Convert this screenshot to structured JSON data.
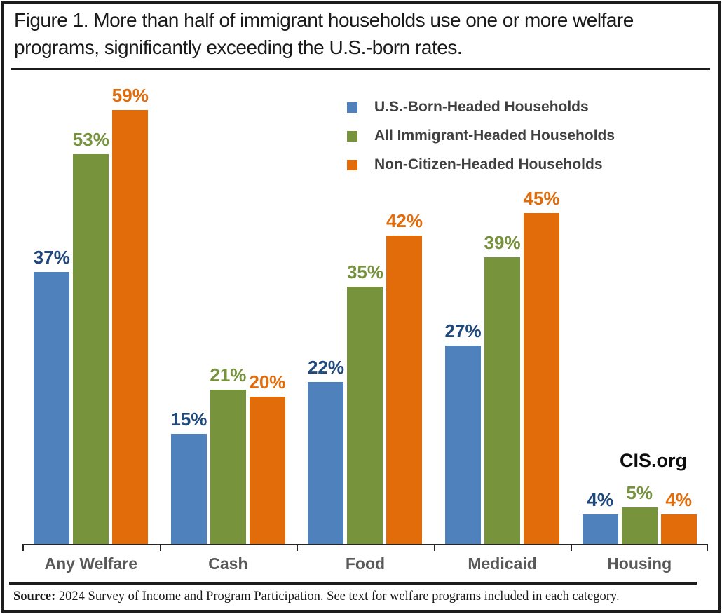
{
  "figure": {
    "title": "Figure 1. More than half of immigrant households use one or more welfare programs, significantly exceeding the U.S.-born rates.",
    "watermark": "CIS.org",
    "source": {
      "label": "Source:",
      "text": " 2024 Survey of Income and Program Participation. See text for welfare programs included in each category."
    }
  },
  "chart_data": {
    "type": "bar",
    "title": "Figure 1. More than half of immigrant households use one or more welfare programs, significantly exceeding the U.S.-born rates.",
    "categories": [
      "Any Welfare",
      "Cash",
      "Food",
      "Medicaid",
      "Housing"
    ],
    "series": [
      {
        "name": "U.S.-Born-Headed Households",
        "color": "#4F81BD",
        "label_color": "#1F497D",
        "values": [
          37,
          15,
          22,
          27,
          4
        ]
      },
      {
        "name": "All Immigrant-Headed Households",
        "color": "#77933C",
        "label_color": "#76923C",
        "values": [
          53,
          21,
          35,
          39,
          5
        ]
      },
      {
        "name": "Non-Citizen-Headed Households",
        "color": "#E36C0A",
        "label_color": "#E36C0A",
        "values": [
          59,
          20,
          42,
          45,
          4
        ]
      }
    ],
    "value_suffix": "%",
    "data_labels": true,
    "xlabel": "",
    "ylabel": "",
    "ylim": [
      0,
      64
    ],
    "grid": false,
    "y_axis_visible": false,
    "legend_position": "inside-top-right",
    "axis_color": "#262626",
    "category_label_color": "#595959",
    "source_note": "Source: 2024 Survey of Income and Program Participation. See text for welfare programs included in each category.",
    "branding": "CIS.org"
  }
}
